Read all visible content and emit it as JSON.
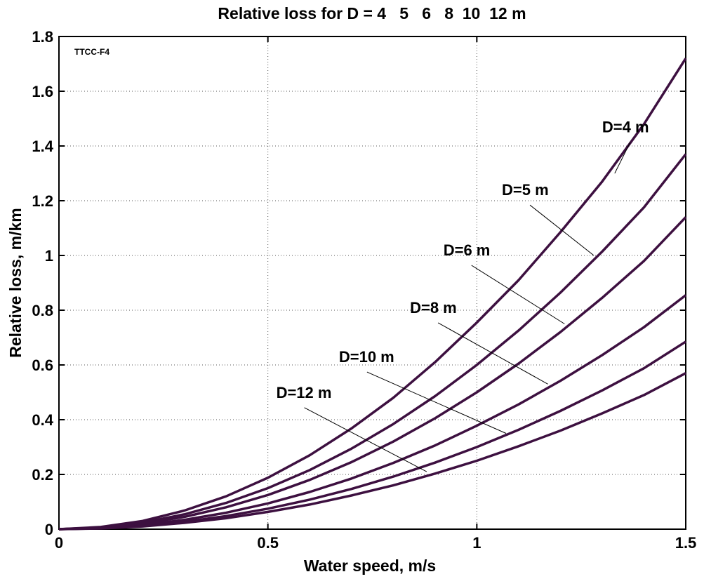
{
  "chart_data": {
    "type": "line",
    "title": "Relative loss for D = 4   5   6   8  10  12 m",
    "xlabel": "Water speed, m/s",
    "ylabel": "Relative loss, m/km",
    "annotation": "TTCC-F4",
    "xlim": [
      0,
      1.5
    ],
    "ylim": [
      0,
      1.8
    ],
    "xticks": [
      0,
      0.5,
      1,
      1.5
    ],
    "xtick_labels": [
      "0",
      "0.5",
      "1",
      "1.5"
    ],
    "yticks": [
      0,
      0.2,
      0.4,
      0.6,
      0.8,
      1,
      1.2,
      1.4,
      1.6,
      1.8
    ],
    "ytick_labels": [
      "0",
      "0.2",
      "0.4",
      "0.6",
      "0.8",
      "1",
      "1.2",
      "1.4",
      "1.6",
      "1.8"
    ],
    "grid": true,
    "line_color": "#3d1040",
    "x": [
      0,
      0.1,
      0.2,
      0.3,
      0.4,
      0.5,
      0.6,
      0.7,
      0.8,
      0.9,
      1.0,
      1.1,
      1.2,
      1.3,
      1.4,
      1.5
    ],
    "series": [
      {
        "name": "D=4 m",
        "values": [
          0,
          0.008,
          0.03,
          0.068,
          0.12,
          0.188,
          0.27,
          0.368,
          0.48,
          0.61,
          0.755,
          0.91,
          1.085,
          1.27,
          1.48,
          1.72
        ],
        "label_x": 1.3,
        "label_y": 1.45,
        "pointer_x": 1.33,
        "pointer_y": 1.3
      },
      {
        "name": "D=5 m",
        "values": [
          0,
          0.006,
          0.024,
          0.054,
          0.096,
          0.15,
          0.216,
          0.294,
          0.384,
          0.486,
          0.6,
          0.726,
          0.864,
          1.014,
          1.176,
          1.37
        ],
        "label_x": 1.06,
        "label_y": 1.22,
        "pointer_x": 1.28,
        "pointer_y": 1.0
      },
      {
        "name": "D=6 m",
        "values": [
          0,
          0.005,
          0.02,
          0.045,
          0.08,
          0.125,
          0.18,
          0.245,
          0.32,
          0.405,
          0.5,
          0.605,
          0.72,
          0.845,
          0.98,
          1.14
        ],
        "label_x": 0.92,
        "label_y": 1.0,
        "pointer_x": 1.21,
        "pointer_y": 0.75
      },
      {
        "name": "D=8 m",
        "values": [
          0,
          0.004,
          0.015,
          0.034,
          0.06,
          0.094,
          0.136,
          0.185,
          0.242,
          0.306,
          0.378,
          0.456,
          0.542,
          0.636,
          0.738,
          0.855
        ],
        "label_x": 0.84,
        "label_y": 0.79,
        "pointer_x": 1.17,
        "pointer_y": 0.53
      },
      {
        "name": "D=10 m",
        "values": [
          0,
          0.003,
          0.012,
          0.027,
          0.048,
          0.075,
          0.108,
          0.147,
          0.192,
          0.243,
          0.3,
          0.363,
          0.432,
          0.507,
          0.588,
          0.685
        ],
        "label_x": 0.67,
        "label_y": 0.61,
        "pointer_x": 1.07,
        "pointer_y": 0.35
      },
      {
        "name": "D=12 m",
        "values": [
          0,
          0.0025,
          0.01,
          0.023,
          0.04,
          0.063,
          0.09,
          0.123,
          0.16,
          0.203,
          0.25,
          0.303,
          0.36,
          0.423,
          0.49,
          0.57
        ],
        "label_x": 0.52,
        "label_y": 0.48,
        "pointer_x": 0.88,
        "pointer_y": 0.21
      }
    ]
  }
}
